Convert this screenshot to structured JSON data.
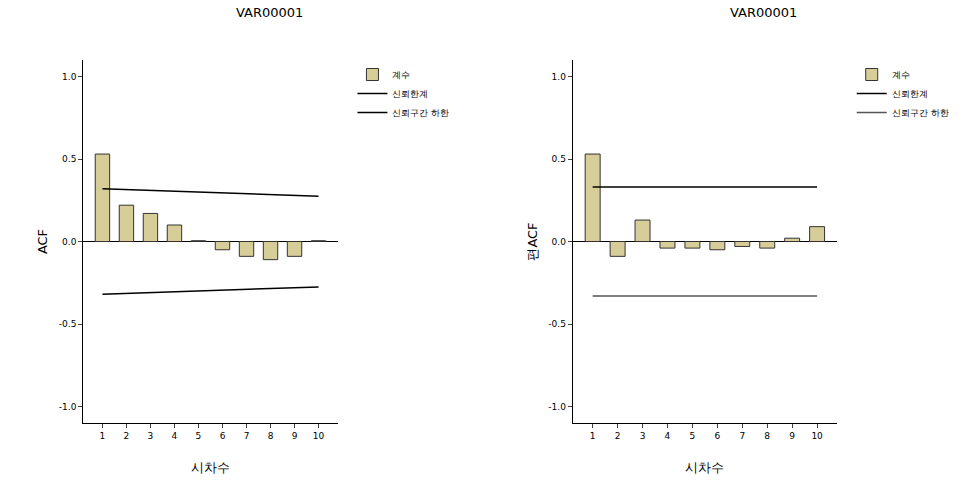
{
  "chart_data": [
    {
      "type": "bar",
      "title": "VAR00001",
      "x_label": "시차수",
      "y_label": "ACF",
      "x": [
        1,
        2,
        3,
        4,
        5,
        6,
        7,
        8,
        9,
        10
      ],
      "series": [
        {
          "name": "계수",
          "type": "bar",
          "color": "#d6cd98",
          "values": [
            0.53,
            0.22,
            0.17,
            0.1,
            0.005,
            -0.05,
            -0.09,
            -0.11,
            -0.09,
            0.005
          ]
        },
        {
          "name": "신뢰한계",
          "type": "line",
          "color": "#000000",
          "values": [
            0.32,
            0.315,
            0.31,
            0.305,
            0.3,
            0.295,
            0.29,
            0.285,
            0.28,
            0.275
          ]
        },
        {
          "name": "신뢰구간 하한",
          "type": "line",
          "color": "#000000",
          "values": [
            -0.32,
            -0.315,
            -0.31,
            -0.305,
            -0.3,
            -0.295,
            -0.29,
            -0.285,
            -0.28,
            -0.275
          ]
        }
      ],
      "xlim": [
        0.2,
        10.8
      ],
      "xticks": [
        1,
        2,
        3,
        4,
        5,
        6,
        7,
        8,
        9,
        10
      ],
      "ylim": [
        -1.1,
        1.1
      ],
      "yticks": [
        {
          "value": -1,
          "label": "-1.0"
        },
        {
          "value": -0.5,
          "label": "-0.5"
        },
        {
          "value": 0,
          "label": "0.0"
        },
        {
          "value": 0.5,
          "label": "0.5"
        },
        {
          "value": 1,
          "label": "1.0"
        }
      ],
      "grid": false,
      "legend": "right"
    },
    {
      "type": "bar",
      "title": "VAR00001",
      "x_label": "시차수",
      "y_label": "편ACF",
      "x": [
        1,
        2,
        3,
        4,
        5,
        6,
        7,
        8,
        9,
        10
      ],
      "series": [
        {
          "name": "계수",
          "type": "bar",
          "color": "#d6cd98",
          "values": [
            0.53,
            -0.09,
            0.13,
            -0.04,
            -0.04,
            -0.05,
            -0.03,
            -0.04,
            0.02,
            0.09
          ]
        },
        {
          "name": "신뢰한계",
          "type": "line",
          "color": "#000000",
          "values": [
            0.33,
            0.33,
            0.33,
            0.33,
            0.33,
            0.33,
            0.33,
            0.33,
            0.33,
            0.33
          ]
        },
        {
          "name": "신뢰구간 하한",
          "type": "line",
          "color": "#555555",
          "values": [
            -0.33,
            -0.33,
            -0.33,
            -0.33,
            -0.33,
            -0.33,
            -0.33,
            -0.33,
            -0.33,
            -0.33
          ]
        }
      ],
      "xlim": [
        0.2,
        10.8
      ],
      "xticks": [
        1,
        2,
        3,
        4,
        5,
        6,
        7,
        8,
        9,
        10
      ],
      "ylim": [
        -1.1,
        1.1
      ],
      "yticks": [
        {
          "value": -1,
          "label": "-1.0"
        },
        {
          "value": -0.5,
          "label": "-0.5"
        },
        {
          "value": 0,
          "label": "0.0"
        },
        {
          "value": 0.5,
          "label": "0.5"
        },
        {
          "value": 1,
          "label": "1.0"
        }
      ],
      "grid": false,
      "legend": "right"
    }
  ]
}
